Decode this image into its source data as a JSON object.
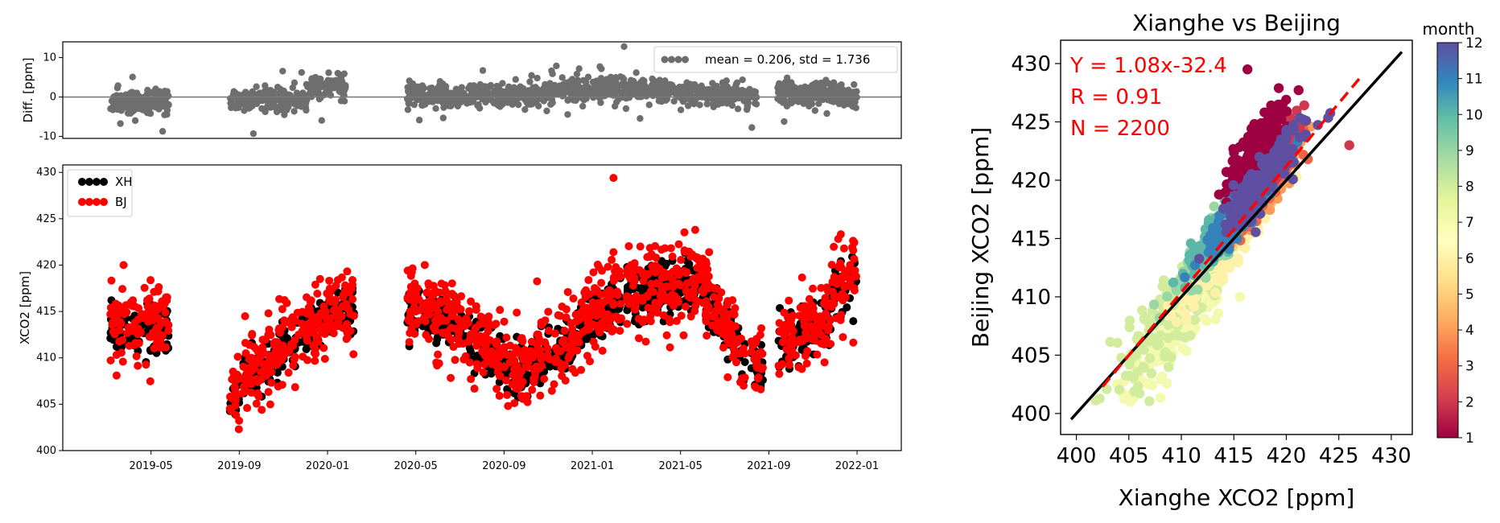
{
  "chart_data": [
    {
      "type": "scatter",
      "panel": "difference",
      "ylabel": "Diff. [ppm]",
      "ylim": [
        -10.5,
        14
      ],
      "yticks": [
        10,
        0,
        -10
      ],
      "xticks": [
        "2019-05",
        "2019-09",
        "2020-01",
        "2020-05",
        "2020-09",
        "2021-01",
        "2021-05",
        "2021-09",
        "2022-01"
      ],
      "reference_line": 0,
      "grid": false,
      "legend_position": "top-right",
      "legend": "mean = 0.206, std = 1.736",
      "color": "#6e6e6e",
      "x_range_months": [
        "2019-02",
        "2022-02"
      ],
      "segments": [
        {
          "x": [
            2019.18,
            2019.4
          ],
          "mean": -1.5
        },
        {
          "x": [
            2019.63,
            2019.92
          ],
          "mean": -0.6
        },
        {
          "x": [
            2019.92,
            2020.07
          ],
          "mean": 2.5
        },
        {
          "x": [
            2020.3,
            2020.6
          ],
          "mean": 0.3
        },
        {
          "x": [
            2020.6,
            2020.85
          ],
          "mean": 0.4
        },
        {
          "x": [
            2020.85,
            2021.25
          ],
          "mean": 1.8
        },
        {
          "x": [
            2021.25,
            2021.55
          ],
          "mean": 0.9
        },
        {
          "x": [
            2021.55,
            2021.62
          ],
          "mean": 0.0
        },
        {
          "x": [
            2021.7,
            2021.95
          ],
          "mean": 1.0
        },
        {
          "x": [
            2021.95,
            2022.0
          ],
          "mean": -0.5
        }
      ]
    },
    {
      "type": "scatter",
      "panel": "timeseries",
      "ylabel": "XCO2 [ppm]",
      "ylim": [
        400,
        430.8
      ],
      "yticks": [
        430,
        425,
        420,
        415,
        410,
        405,
        400
      ],
      "xticks": [
        "2019-05",
        "2019-09",
        "2020-01",
        "2020-05",
        "2020-09",
        "2021-01",
        "2021-05",
        "2021-09",
        "2022-01"
      ],
      "grid": false,
      "legend_position": "top-left",
      "series": [
        {
          "name": "XH",
          "color": "#000000"
        },
        {
          "name": "BJ",
          "color": "#ff0000"
        }
      ],
      "segments": [
        {
          "x": [
            2019.18,
            2019.4
          ],
          "level": [
            413.0,
            413.5
          ]
        },
        {
          "x": [
            2019.63,
            2019.7
          ],
          "level": [
            404.5,
            408.0
          ]
        },
        {
          "x": [
            2019.7,
            2020.0
          ],
          "level": [
            408.0,
            414.5
          ]
        },
        {
          "x": [
            2020.0,
            2020.1
          ],
          "level": [
            414.5,
            415.5
          ]
        },
        {
          "x": [
            2020.3,
            2020.55
          ],
          "level": [
            415.5,
            412.5
          ]
        },
        {
          "x": [
            2020.55,
            2020.75
          ],
          "level": [
            412.0,
            407.5
          ]
        },
        {
          "x": [
            2020.75,
            2021.1
          ],
          "level": [
            408.0,
            416.5
          ]
        },
        {
          "x": [
            2021.1,
            2021.4
          ],
          "level": [
            416.5,
            418.0
          ]
        },
        {
          "x": [
            2021.4,
            2021.58
          ],
          "level": [
            417.5,
            410.0
          ]
        },
        {
          "x": [
            2021.6,
            2021.65
          ],
          "level": [
            409.0,
            409.0
          ]
        },
        {
          "x": [
            2021.7,
            2021.9
          ],
          "level": [
            411.0,
            414.5
          ]
        },
        {
          "x": [
            2021.9,
            2022.0
          ],
          "level": [
            416.5,
            419.0
          ]
        }
      ]
    },
    {
      "type": "scatter",
      "panel": "correlation",
      "title": "Xianghe vs Beijing",
      "xlabel": "Xianghe XCO2 [ppm]",
      "ylabel": "Beijing XCO2 [ppm]",
      "xlim": [
        398.5,
        432
      ],
      "ylim": [
        398.2,
        432
      ],
      "ticks": [
        400,
        405,
        410,
        415,
        420,
        425,
        430
      ],
      "annotations": [
        "Y = 1.08x-32.4",
        "R = 0.91",
        "N = 2200"
      ],
      "annotation_color": "#ff0000",
      "one_to_one_line": {
        "x": [
          399.5,
          431
        ],
        "y": [
          399.5,
          431
        ],
        "color": "#000000"
      },
      "fit_line": {
        "slope": 1.08,
        "intercept": -32.4,
        "x": [
          402.5,
          427
        ],
        "color": "#ff0000",
        "style": "dashed"
      },
      "colorbar": {
        "label": "month",
        "min": 1,
        "max": 12,
        "ticks": [
          1,
          2,
          3,
          4,
          5,
          6,
          7,
          8,
          9,
          10,
          11,
          12
        ],
        "colormap": "Spectral"
      }
    }
  ]
}
